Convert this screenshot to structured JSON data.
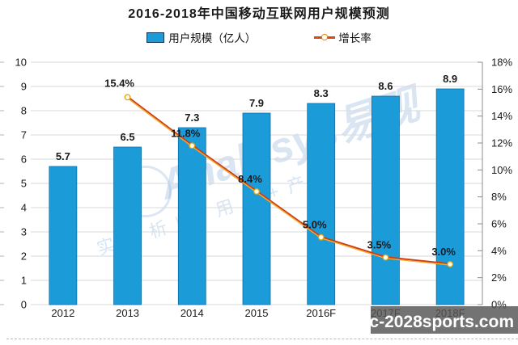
{
  "title": "2016-2018年中国移动互联网用户规模预测",
  "legend": {
    "bar_label": "用户规模（亿人）",
    "line_label": "增长率"
  },
  "chart_data": {
    "type": "combo-bar-line",
    "categories": [
      "2012",
      "2013",
      "2014",
      "2015",
      "2016F",
      "2017F",
      "2018F"
    ],
    "series": [
      {
        "name": "用户规模（亿人）",
        "type": "bar",
        "axis": "left",
        "color": "#1B9BD8",
        "values": [
          5.7,
          6.5,
          7.3,
          7.9,
          8.3,
          8.6,
          8.9
        ],
        "labels": [
          "5.7",
          "6.5",
          "7.3",
          "7.9",
          "8.3",
          "8.6",
          "8.9"
        ]
      },
      {
        "name": "增长率",
        "type": "line",
        "axis": "right",
        "color": "#CE3A12",
        "values": [
          null,
          15.4,
          11.8,
          8.4,
          5.0,
          3.5,
          3.0
        ],
        "labels": [
          "",
          "15.4%",
          "11.8%",
          "8.4%",
          "5.0%",
          "3.5%",
          "3.0%"
        ]
      }
    ],
    "left_axis": {
      "min": 0,
      "max": 10,
      "step": 1,
      "ticks": [
        "0",
        "1",
        "2",
        "3",
        "4",
        "5",
        "6",
        "7",
        "8",
        "9",
        "10"
      ]
    },
    "right_axis": {
      "min": 0,
      "max": 18,
      "step": 2,
      "ticks": [
        "0%",
        "2%",
        "4%",
        "6%",
        "8%",
        "10%",
        "12%",
        "14%",
        "16%",
        "18%"
      ]
    },
    "grid": "horizontal",
    "legend_position": "top"
  },
  "colors": {
    "bar_fill": "#1B9BD8",
    "bar_border": "#0D6FA6",
    "line_main": "#CE3A12",
    "line_highlight": "#F3AC32",
    "marker_fill": "#FFFDE7",
    "marker_stroke": "#DFA50F",
    "gridline": "#DADADA",
    "axis_line": "#8C8C8C",
    "text": "#1A1A1A"
  },
  "watermark": {
    "brand": "Analysys易观",
    "tagline": "实分析师 用户+产成"
  },
  "overlay": {
    "text": "pc-2028sports.com"
  }
}
